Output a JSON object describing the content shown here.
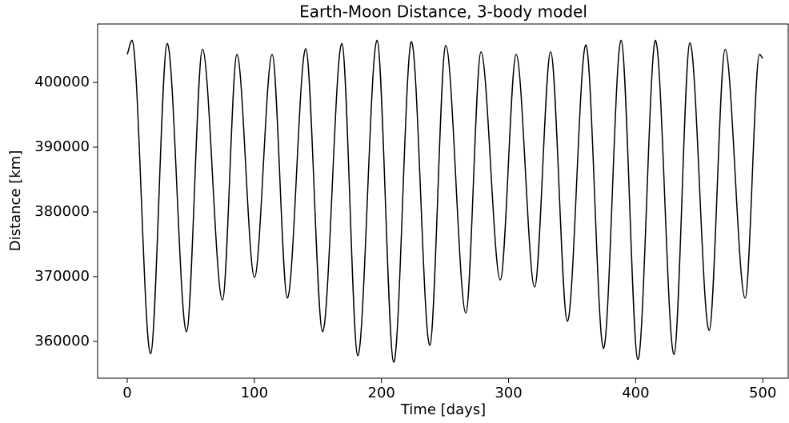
{
  "chart_data": {
    "type": "line",
    "title": "Earth-Moon Distance, 3-body model",
    "xlabel": "Time [days]",
    "ylabel": "Distance [km]",
    "x": [
      0,
      3.8,
      18.3,
      31.5,
      46.6,
      59.2,
      74.9,
      86.3,
      100.1,
      114,
      126,
      140.4,
      153.7,
      168.8,
      181.4,
      196.5,
      209.7,
      223.6,
      238,
      250.6,
      266.4,
      278.3,
      293.5,
      306,
      320.5,
      333.1,
      346.3,
      360.8,
      374.7,
      388.5,
      401.8,
      415.6,
      430.1,
      442.7,
      457.8,
      470.4,
      486.1,
      497.4,
      500
    ],
    "series": [
      {
        "name": "distance",
        "color": "#000000",
        "values": [
          404300,
          406500,
          358100,
          406000,
          361500,
          405100,
          366400,
          404300,
          369900,
          404300,
          366700,
          405200,
          361500,
          406000,
          357800,
          406500,
          356800,
          406300,
          359400,
          405700,
          364400,
          404700,
          369500,
          404300,
          368400,
          404700,
          363100,
          405800,
          358900,
          406500,
          357200,
          406500,
          358000,
          406100,
          361700,
          405100,
          366700,
          404300,
          403700
        ]
      }
    ],
    "xlim": [
      -23.3,
      520
    ],
    "ylim": [
      354321,
      409012
    ],
    "xticks": [
      0,
      100,
      200,
      300,
      400,
      500
    ],
    "yticks": [
      360000,
      370000,
      380000,
      390000,
      400000
    ],
    "grid": false
  }
}
